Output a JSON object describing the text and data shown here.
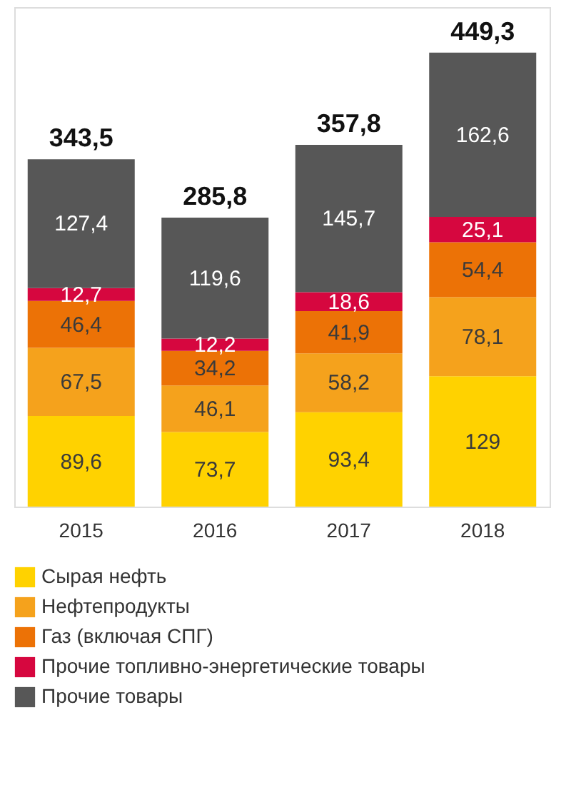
{
  "chart_data": {
    "type": "bar",
    "stacked": true,
    "categories": [
      "2015",
      "2016",
      "2017",
      "2018"
    ],
    "series": [
      {
        "name": "Сырая нефть",
        "color": "#ffd200",
        "values": [
          89.6,
          73.7,
          93.4,
          129
        ],
        "value_labels": [
          "89,6",
          "73,7",
          "93,4",
          "129"
        ]
      },
      {
        "name": "Нефтепродукты",
        "color": "#f5a21c",
        "values": [
          67.5,
          46.1,
          58.2,
          78.1
        ],
        "value_labels": [
          "67,5",
          "46,1",
          "58,2",
          "78,1"
        ]
      },
      {
        "name": "Газ (включая СПГ)",
        "color": "#ec7206",
        "values": [
          46.4,
          34.2,
          41.9,
          54.4
        ],
        "value_labels": [
          "46,4",
          "34,2",
          "41,9",
          "54,4"
        ]
      },
      {
        "name": "Прочие топливно-энергетические товары",
        "color": "#d6073f",
        "values": [
          12.7,
          12.2,
          18.6,
          25.1
        ],
        "value_labels": [
          "12,7",
          "12,2",
          "18,6",
          "25,1"
        ]
      },
      {
        "name": "Прочие товары",
        "color": "#575757",
        "values": [
          127.4,
          119.6,
          145.7,
          162.6
        ],
        "value_labels": [
          "127,4",
          "119,6",
          "145,7",
          "162,6"
        ]
      }
    ],
    "totals": [
      "343,5",
      "285,8",
      "357,8",
      "449,3"
    ],
    "legend": "bottom",
    "grid": false
  }
}
